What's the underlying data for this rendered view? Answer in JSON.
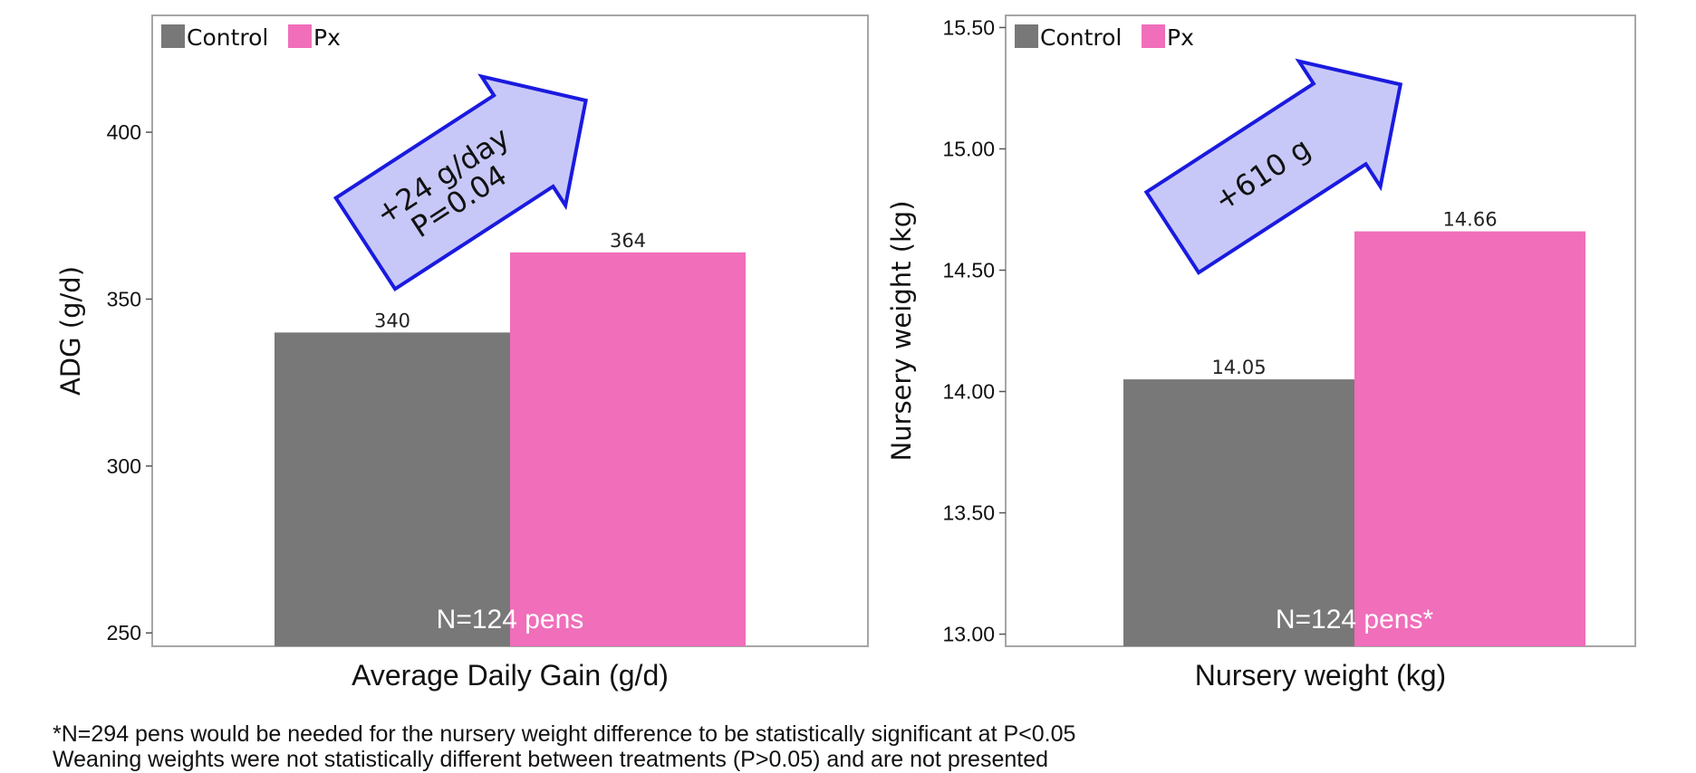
{
  "chart_data": [
    {
      "type": "bar",
      "categories": [
        "Control",
        "Px"
      ],
      "values": [
        340,
        364
      ],
      "data_labels": [
        "340",
        "364"
      ],
      "ylabel": "ADG (g/d)",
      "xlabel": "Average Daily Gain (g/d)",
      "ylim": [
        246,
        435
      ],
      "yticks": [
        250,
        300,
        350,
        400
      ],
      "ytick_labels": [
        "250",
        "300",
        "350",
        "400"
      ],
      "legend": {
        "placement": "top-left",
        "entries": [
          "Control",
          "Px"
        ]
      },
      "annotation_lines": [
        "+24 g/day",
        "P=0.04"
      ],
      "inner_label": "N=124 pens",
      "grid": false
    },
    {
      "type": "bar",
      "categories": [
        "Control",
        "Px"
      ],
      "values": [
        14.05,
        14.66
      ],
      "data_labels": [
        "14.05",
        "14.66"
      ],
      "ylabel": "Nursery weight (kg)",
      "xlabel": "Nursery weight (kg)",
      "ylim": [
        12.95,
        15.55
      ],
      "yticks": [
        13.0,
        13.5,
        14.0,
        14.5,
        15.0,
        15.5
      ],
      "ytick_labels": [
        "13.00",
        "13.50",
        "14.00",
        "14.50",
        "15.00",
        "15.50"
      ],
      "legend": {
        "placement": "top-left",
        "entries": [
          "Control",
          "Px"
        ]
      },
      "annotation_lines": [
        "+610 g"
      ],
      "inner_label": "N=124 pens*",
      "grid": false
    }
  ],
  "colors": {
    "control": "#787878",
    "px": "#f06eba",
    "arrow_fill": "#c8c8f8",
    "arrow_stroke": "#1a1adf",
    "frame": "#a6a6a6"
  },
  "footnotes": [
    "*N=294 pens would be needed for the nursery weight difference to be statistically significant at P<0.05",
    "Weaning weights were not statistically different between treatments (P>0.05) and are not presented"
  ]
}
